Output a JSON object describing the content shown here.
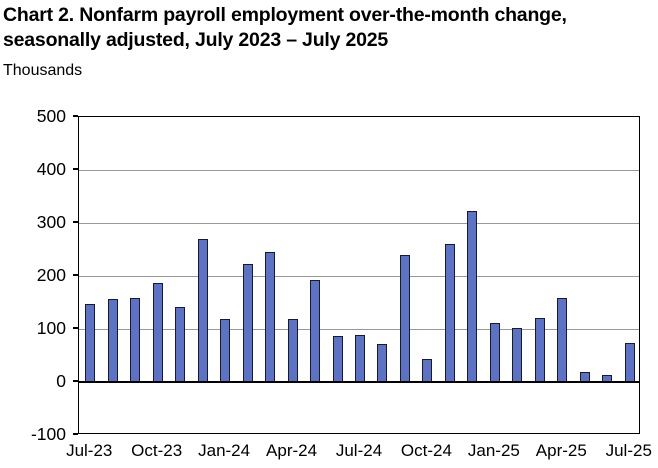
{
  "header": {
    "title_line1": "Chart 2. Nonfarm payroll employment over-the-month change,",
    "title_line2": "seasonally adjusted, July 2023 – July 2025",
    "units_label": "Thousands"
  },
  "chart_data": {
    "type": "bar",
    "title": "Chart 2. Nonfarm payroll employment over-the-month change, seasonally adjusted, July 2023 – July 2025",
    "ylabel": "Thousands",
    "xlabel": "",
    "ylim": [
      -100,
      500
    ],
    "y_ticks": [
      500,
      400,
      300,
      200,
      100,
      0,
      -100
    ],
    "grid": true,
    "legend": false,
    "bar_color": "#5B72C7",
    "bar_border_color": "#181C28",
    "gridline_color": "#999999",
    "categories": [
      "Jul-23",
      "Aug-23",
      "Sep-23",
      "Oct-23",
      "Nov-23",
      "Dec-23",
      "Jan-24",
      "Feb-24",
      "Mar-24",
      "Apr-24",
      "May-24",
      "Jun-24",
      "Jul-24",
      "Aug-24",
      "Sep-24",
      "Oct-24",
      "Nov-24",
      "Dec-24",
      "Jan-25",
      "Feb-25",
      "Mar-25",
      "Apr-25",
      "May-25",
      "Jun-25",
      "Jul-25"
    ],
    "values": [
      148,
      157,
      158,
      186,
      141,
      269,
      119,
      222,
      246,
      118,
      193,
      87,
      88,
      71,
      240,
      44,
      261,
      323,
      111,
      102,
      120,
      158,
      19,
      14,
      73
    ],
    "x_tick_labels": [
      "Jul-23",
      "Oct-23",
      "Jan-24",
      "Apr-24",
      "Jul-24",
      "Oct-24",
      "Jan-25",
      "Apr-25",
      "Jul-25"
    ],
    "x_tick_indices": [
      0,
      3,
      6,
      9,
      12,
      15,
      18,
      21,
      24
    ]
  }
}
